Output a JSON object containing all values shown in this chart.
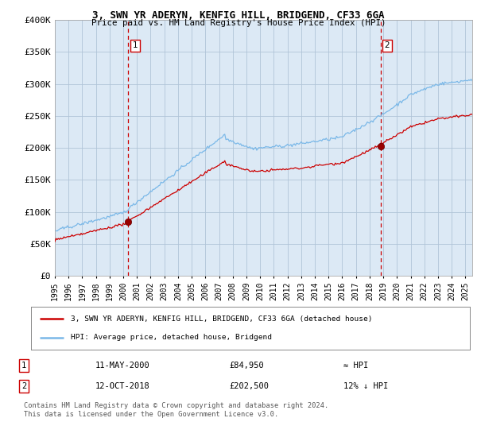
{
  "title": "3, SWN YR ADERYN, KENFIG HILL, BRIDGEND, CF33 6GA",
  "subtitle": "Price paid vs. HM Land Registry's House Price Index (HPI)",
  "ylabel_ticks": [
    "£0",
    "£50K",
    "£100K",
    "£150K",
    "£200K",
    "£250K",
    "£300K",
    "£350K",
    "£400K"
  ],
  "ylim": [
    0,
    400000
  ],
  "xlim_start": 1995.0,
  "xlim_end": 2025.5,
  "sale1_date": 2000.36,
  "sale1_price": 84950,
  "sale1_label": "1",
  "sale1_text": "11-MAY-2000",
  "sale1_price_str": "£84,950",
  "sale1_hpi": "≈ HPI",
  "sale2_date": 2018.79,
  "sale2_price": 202500,
  "sale2_label": "2",
  "sale2_text": "12-OCT-2018",
  "sale2_price_str": "£202,500",
  "sale2_hpi": "12% ↓ HPI",
  "legend_line1": "3, SWN YR ADERYN, KENFIG HILL, BRIDGEND, CF33 6GA (detached house)",
  "legend_line2": "HPI: Average price, detached house, Bridgend",
  "footer1": "Contains HM Land Registry data © Crown copyright and database right 2024.",
  "footer2": "This data is licensed under the Open Government Licence v3.0.",
  "hpi_color": "#7ab8e8",
  "price_color": "#cc0000",
  "sale_dot_color": "#990000",
  "dashed_line_color": "#cc0000",
  "bg_color": "#dce9f5",
  "plot_bg": "#dce9f5",
  "outer_bg": "#ffffff",
  "grid_color": "#b0c4d8"
}
